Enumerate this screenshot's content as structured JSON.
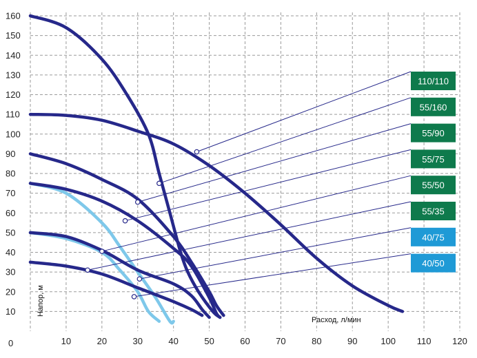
{
  "chart_data": {
    "type": "line",
    "title": "",
    "xlabel": "Расход, л/мин",
    "ylabel": "Напор, м",
    "xlim": [
      0,
      120
    ],
    "ylim": [
      0,
      160
    ],
    "x_ticks": [
      0,
      10,
      20,
      30,
      40,
      50,
      60,
      70,
      80,
      90,
      100,
      110,
      120
    ],
    "y_ticks": [
      10,
      20,
      30,
      40,
      50,
      60,
      70,
      80,
      90,
      100,
      110,
      120,
      130,
      140,
      150,
      160
    ],
    "y_origin_label": "0",
    "grid": true,
    "series": [
      {
        "name": "110/110",
        "color": "#26288a",
        "points": [
          [
            0,
            110
          ],
          [
            10,
            109.5
          ],
          [
            20,
            107
          ],
          [
            30,
            101.5
          ],
          [
            40,
            95
          ],
          [
            50,
            84
          ],
          [
            60,
            70
          ],
          [
            70,
            54
          ],
          [
            80,
            37
          ],
          [
            90,
            23
          ],
          [
            100,
            13
          ],
          [
            104,
            10
          ]
        ]
      },
      {
        "name": "55/160",
        "color": "#26288a",
        "points": [
          [
            0,
            160
          ],
          [
            10,
            154
          ],
          [
            20,
            138
          ],
          [
            27,
            120
          ],
          [
            33,
            100
          ],
          [
            36,
            80
          ],
          [
            39,
            60
          ],
          [
            42,
            40
          ],
          [
            44,
            30
          ],
          [
            47,
            20
          ],
          [
            51,
            10
          ],
          [
            53,
            7
          ]
        ]
      },
      {
        "name": "55/90",
        "color": "#26288a",
        "points": [
          [
            0,
            90
          ],
          [
            10,
            85
          ],
          [
            20,
            77
          ],
          [
            30,
            67
          ],
          [
            40,
            48
          ],
          [
            45,
            35
          ],
          [
            50,
            20
          ],
          [
            52,
            13
          ],
          [
            54,
            8
          ]
        ]
      },
      {
        "name": "55/75",
        "color": "#26288a",
        "points": [
          [
            0,
            75
          ],
          [
            10,
            72
          ],
          [
            20,
            66
          ],
          [
            30,
            56
          ],
          [
            40,
            42
          ],
          [
            45,
            33
          ],
          [
            50,
            17
          ],
          [
            52,
            9
          ],
          [
            53,
            7
          ]
        ]
      },
      {
        "name": "55/50",
        "color": "#26288a",
        "points": [
          [
            0,
            50
          ],
          [
            10,
            48
          ],
          [
            20,
            41
          ],
          [
            30,
            31
          ],
          [
            40,
            24
          ],
          [
            45,
            18
          ],
          [
            48,
            11
          ],
          [
            50,
            7
          ]
        ]
      },
      {
        "name": "55/35",
        "color": "#26288a",
        "points": [
          [
            0,
            35
          ],
          [
            10,
            33
          ],
          [
            20,
            29
          ],
          [
            30,
            22
          ],
          [
            40,
            15
          ],
          [
            45,
            11
          ],
          [
            48,
            8
          ]
        ]
      },
      {
        "name": "40/75",
        "color": "#7ec8ea",
        "points": [
          [
            0,
            75
          ],
          [
            10,
            70
          ],
          [
            20,
            55
          ],
          [
            25,
            43
          ],
          [
            30,
            30
          ],
          [
            35,
            17
          ],
          [
            39,
            5
          ],
          [
            40,
            5
          ]
        ]
      },
      {
        "name": "40/50",
        "color": "#7ec8ea",
        "points": [
          [
            0,
            50
          ],
          [
            10,
            47
          ],
          [
            20,
            40
          ],
          [
            25,
            31
          ],
          [
            30,
            20
          ],
          [
            33,
            10
          ],
          [
            36,
            5
          ]
        ]
      }
    ],
    "legend": [
      {
        "label": "110/110",
        "color": "#0e7a4c",
        "marker": [
          46.5,
          91
        ]
      },
      {
        "label": "55/160",
        "color": "#0e7a4c",
        "marker": [
          36,
          75
        ]
      },
      {
        "label": "55/90",
        "color": "#0e7a4c",
        "marker": [
          30,
          65.5
        ]
      },
      {
        "label": "55/75",
        "color": "#0e7a4c",
        "marker": [
          26.5,
          56
        ]
      },
      {
        "label": "55/50",
        "color": "#0e7a4c",
        "marker": [
          20,
          40.5
        ]
      },
      {
        "label": "55/35",
        "color": "#0e7a4c",
        "marker": [
          16,
          31
        ]
      },
      {
        "label": "40/75",
        "color": "#1f9ad6",
        "marker": [
          30.5,
          26.5
        ]
      },
      {
        "label": "40/50",
        "color": "#1f9ad6",
        "marker": [
          29,
          17.5
        ]
      }
    ]
  }
}
